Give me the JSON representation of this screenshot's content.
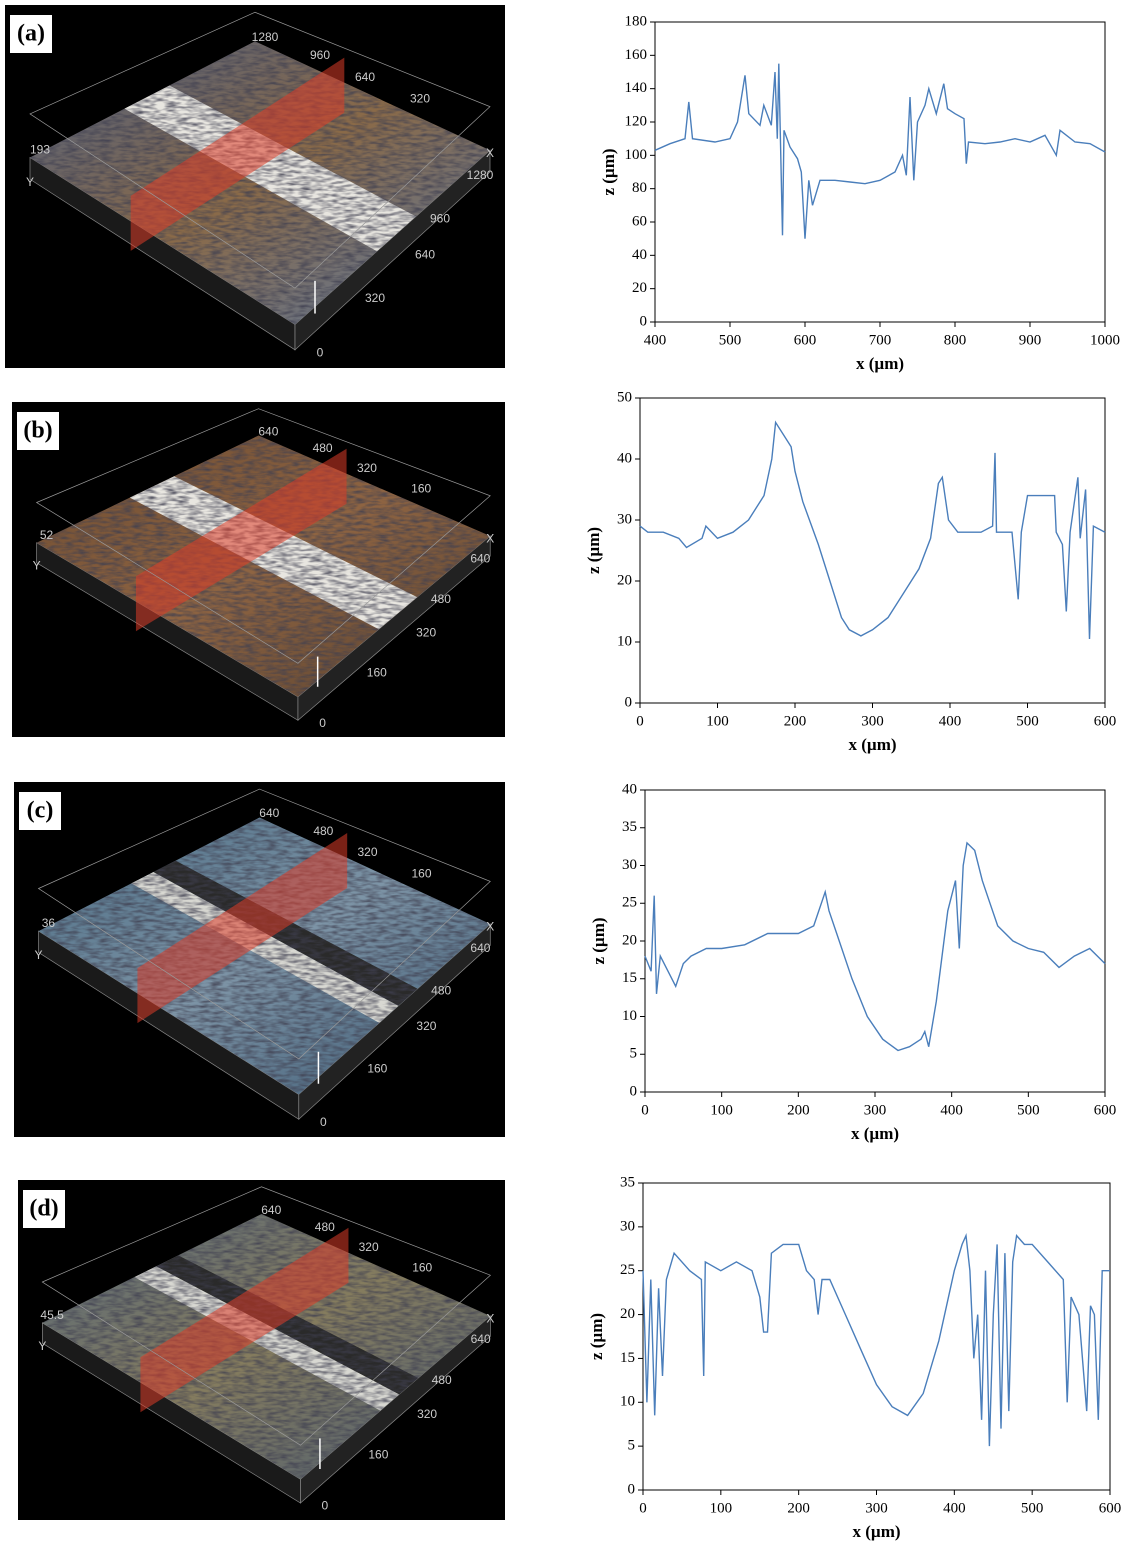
{
  "images": [
    {
      "label": "(a)",
      "axis_labels": [
        "1280",
        "960",
        "640",
        "320",
        "193",
        "Y",
        "X",
        "1280",
        "960",
        "640",
        "320",
        "0"
      ]
    },
    {
      "label": "(b)",
      "axis_labels": [
        "640",
        "480",
        "320",
        "160",
        "52",
        "Y",
        "X",
        "640",
        "480",
        "320",
        "160",
        "0"
      ]
    },
    {
      "label": "(c)",
      "axis_labels": [
        "640",
        "480",
        "320",
        "160",
        "36",
        "Y",
        "X",
        "640",
        "480",
        "320",
        "160",
        "0"
      ]
    },
    {
      "label": "(d)",
      "axis_labels": [
        "640",
        "480",
        "320",
        "160",
        "45.5",
        "Y",
        "X",
        "640",
        "480",
        "320",
        "160",
        "0"
      ]
    }
  ],
  "chart_data": [
    {
      "type": "line",
      "x_label": "x (µm)",
      "y_label": "z (µm)",
      "x": [
        400,
        420,
        440,
        445,
        450,
        480,
        500,
        510,
        520,
        525,
        540,
        545,
        555,
        560,
        563,
        565,
        570,
        572,
        580,
        590,
        595,
        600,
        605,
        610,
        620,
        640,
        660,
        680,
        700,
        720,
        730,
        735,
        740,
        745,
        750,
        760,
        765,
        775,
        785,
        790,
        800,
        812,
        815,
        818,
        840,
        860,
        880,
        900,
        920,
        935,
        940,
        960,
        980,
        1000
      ],
      "series": [
        {
          "color": "#4a7ebb",
          "values": [
            103,
            107,
            110,
            132,
            110,
            108,
            110,
            120,
            148,
            125,
            118,
            130,
            118,
            150,
            110,
            155,
            52,
            115,
            105,
            98,
            90,
            50,
            85,
            70,
            85,
            85,
            84,
            83,
            85,
            90,
            100,
            88,
            135,
            85,
            120,
            130,
            140,
            125,
            143,
            128,
            125,
            122,
            95,
            108,
            107,
            108,
            110,
            108,
            112,
            100,
            115,
            108,
            107,
            102
          ]
        }
      ],
      "xlim": [
        400,
        1000
      ],
      "ylim": [
        0,
        180
      ],
      "xticks": [
        400,
        500,
        600,
        700,
        800,
        900,
        1000
      ],
      "yticks": [
        0,
        20,
        40,
        60,
        80,
        100,
        120,
        140,
        160,
        180
      ]
    },
    {
      "type": "line",
      "x_label": "x (µm)",
      "y_label": "z (µm)",
      "x": [
        0,
        10,
        30,
        50,
        60,
        80,
        85,
        100,
        120,
        140,
        160,
        170,
        175,
        185,
        195,
        200,
        210,
        230,
        245,
        260,
        270,
        285,
        300,
        320,
        340,
        360,
        375,
        385,
        390,
        398,
        410,
        440,
        455,
        458,
        460,
        480,
        488,
        492,
        500,
        530,
        535,
        537,
        545,
        550,
        555,
        565,
        568,
        575,
        580,
        585,
        600
      ],
      "series": [
        {
          "color": "#4a7ebb",
          "values": [
            29,
            28,
            28,
            27,
            25.5,
            27,
            29,
            27,
            28,
            30,
            34,
            40,
            46,
            44,
            42,
            38,
            33,
            26,
            20,
            14,
            12,
            11,
            12,
            14,
            18,
            22,
            27,
            36,
            37,
            30,
            28,
            28,
            29,
            41,
            28,
            28,
            17,
            28,
            34,
            34,
            34,
            28,
            26,
            15,
            28,
            37,
            27,
            35,
            10.5,
            29,
            28
          ]
        }
      ],
      "xlim": [
        0,
        600
      ],
      "ylim": [
        0,
        50
      ],
      "xticks": [
        0,
        100,
        200,
        300,
        400,
        500,
        600
      ],
      "yticks": [
        0,
        10,
        20,
        30,
        40,
        50
      ]
    },
    {
      "type": "line",
      "x_label": "x (µm)",
      "y_label": "z (µm)",
      "x": [
        0,
        8,
        12,
        15,
        20,
        30,
        40,
        50,
        60,
        80,
        100,
        130,
        160,
        200,
        220,
        235,
        240,
        250,
        270,
        290,
        310,
        330,
        345,
        360,
        365,
        370,
        380,
        395,
        405,
        410,
        415,
        420,
        430,
        440,
        450,
        460,
        480,
        500,
        520,
        540,
        560,
        580,
        600
      ],
      "series": [
        {
          "color": "#4a7ebb",
          "values": [
            18,
            16,
            26,
            13,
            18,
            16,
            14,
            17,
            18,
            19,
            19,
            19.5,
            21,
            21,
            22,
            26.5,
            24,
            21,
            15,
            10,
            7,
            5.5,
            6,
            7,
            8,
            6,
            12,
            24,
            28,
            19,
            30,
            33,
            32,
            28,
            25,
            22,
            20,
            19,
            18.5,
            16.5,
            18,
            19,
            17
          ]
        }
      ],
      "xlim": [
        0,
        600
      ],
      "ylim": [
        0,
        40
      ],
      "xticks": [
        0,
        100,
        200,
        300,
        400,
        500,
        600
      ],
      "yticks": [
        0,
        5,
        10,
        15,
        20,
        25,
        30,
        35,
        40
      ]
    },
    {
      "type": "line",
      "x_label": "x (µm)",
      "y_label": "z (µm)",
      "x": [
        0,
        5,
        10,
        15,
        20,
        25,
        30,
        40,
        60,
        75,
        78,
        80,
        100,
        120,
        140,
        150,
        155,
        160,
        165,
        180,
        200,
        210,
        220,
        225,
        230,
        240,
        260,
        280,
        300,
        320,
        340,
        360,
        380,
        400,
        410,
        415,
        420,
        425,
        430,
        435,
        440,
        445,
        450,
        455,
        460,
        465,
        470,
        475,
        480,
        490,
        500,
        520,
        540,
        545,
        550,
        560,
        570,
        575,
        580,
        585,
        590,
        600
      ],
      "series": [
        {
          "color": "#4a7ebb",
          "values": [
            25,
            10,
            24,
            8.5,
            23,
            13,
            24,
            27,
            25,
            24,
            13,
            26,
            25,
            26,
            25,
            22,
            18,
            18,
            27,
            28,
            28,
            25,
            24,
            20,
            24,
            24,
            20,
            16,
            12,
            9.5,
            8.5,
            11,
            17,
            25,
            28,
            29,
            25,
            15,
            20,
            8,
            25,
            5,
            20,
            28,
            7,
            27,
            9,
            26,
            29,
            28,
            28,
            26,
            24,
            10,
            22,
            20,
            9,
            21,
            20,
            8,
            25,
            25
          ]
        }
      ],
      "xlim": [
        0,
        600
      ],
      "ylim": [
        0,
        35
      ],
      "xticks": [
        0,
        100,
        200,
        300,
        400,
        500,
        600
      ],
      "yticks": [
        0,
        5,
        10,
        15,
        20,
        25,
        30,
        35
      ]
    }
  ]
}
